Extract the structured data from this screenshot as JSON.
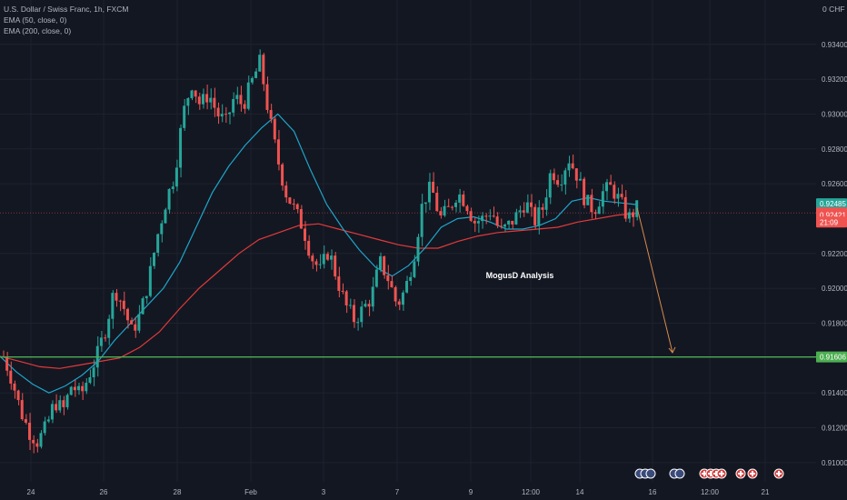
{
  "legend": {
    "symbol_line": "U.S. Dollar / Swiss Franc, 1h, FXCM",
    "ema50_line": "EMA (50, close, 0)",
    "ema200_line": "EMA (200, close, 0)"
  },
  "axis_unit": "0 CHF",
  "annotation": "MogusD Analysis",
  "colors": {
    "background": "#131722",
    "up": "#26a69a",
    "down": "#ef5350",
    "ema50": "#1ea5c9",
    "ema200": "#e23a3a",
    "support": "#4caf50",
    "arrow": "#d98a4a"
  },
  "chart_data": {
    "type": "candlestick",
    "y_ticks": [
      "0.93400",
      "0.93200",
      "0.93000",
      "0.92800",
      "0.92600",
      "0.92200",
      "0.92000",
      "0.91800",
      "0.91400",
      "0.91200",
      "0.91000"
    ],
    "x_ticks": [
      "24",
      "26",
      "28",
      "Feb",
      "3",
      "7",
      "9",
      "12:00",
      "14",
      "16",
      "12:00",
      "21"
    ],
    "ylim": [
      0.909,
      0.9355
    ],
    "price_labels": [
      {
        "text": "0.92485",
        "value": 0.92485,
        "color": "#26a69a"
      },
      {
        "text": "0.92433",
        "value": 0.92433,
        "color": "#ef5350"
      },
      {
        "text": "0.92421",
        "value": 0.92421,
        "color": "#ef5350"
      },
      {
        "text": "21:09",
        "value": 0.9238,
        "color": "#ef5350"
      },
      {
        "text": "0.91606",
        "value": 0.91606,
        "color": "#4caf50"
      }
    ],
    "support_level": 0.91606,
    "series": [
      {
        "name": "EMA (50, close, 0)",
        "values": [
          0.9161,
          0.9152,
          0.9145,
          0.914,
          0.9144,
          0.915,
          0.9158,
          0.917,
          0.918,
          0.919,
          0.92,
          0.9215,
          0.9235,
          0.9255,
          0.927,
          0.9282,
          0.9292,
          0.93,
          0.929,
          0.9268,
          0.9248,
          0.9234,
          0.9222,
          0.9212,
          0.9207,
          0.9213,
          0.9223,
          0.9235,
          0.924,
          0.9241,
          0.9238,
          0.9234,
          0.9234,
          0.9236,
          0.924,
          0.925,
          0.9252,
          0.925,
          0.9249,
          0.9248
        ]
      },
      {
        "name": "EMA (200, close, 0)",
        "values": [
          0.9161,
          0.9158,
          0.9155,
          0.9154,
          0.9156,
          0.9158,
          0.916,
          0.9166,
          0.9175,
          0.9188,
          0.92,
          0.921,
          0.922,
          0.9228,
          0.9232,
          0.9236,
          0.9237,
          0.9234,
          0.9231,
          0.9228,
          0.9225,
          0.9223,
          0.9223,
          0.9227,
          0.923,
          0.9232,
          0.9233,
          0.9234,
          0.9235,
          0.9238,
          0.924,
          0.9242,
          0.9243
        ]
      }
    ],
    "projection": {
      "from": 0.9246,
      "to": 0.9161
    }
  },
  "candle_path": [
    0.9161,
    0.9148,
    0.913,
    0.9118,
    0.9112,
    0.912,
    0.9135,
    0.913,
    0.9145,
    0.9138,
    0.915,
    0.9162,
    0.9178,
    0.92,
    0.919,
    0.9175,
    0.9185,
    0.9205,
    0.923,
    0.925,
    0.9265,
    0.93,
    0.9318,
    0.9305,
    0.9312,
    0.93,
    0.9295,
    0.931,
    0.9305,
    0.9318,
    0.933,
    0.93,
    0.9275,
    0.9255,
    0.9245,
    0.9235,
    0.9218,
    0.921,
    0.9222,
    0.9205,
    0.919,
    0.9182,
    0.9188,
    0.9195,
    0.9215,
    0.9205,
    0.919,
    0.92,
    0.922,
    0.925,
    0.9258,
    0.924,
    0.9245,
    0.9255,
    0.925,
    0.9238,
    0.924,
    0.9245,
    0.9232,
    0.9236,
    0.9242,
    0.925,
    0.9238,
    0.9246,
    0.9268,
    0.9262,
    0.9275,
    0.9265,
    0.925,
    0.9245,
    0.9255,
    0.9258,
    0.925,
    0.924,
    0.9246
  ]
}
